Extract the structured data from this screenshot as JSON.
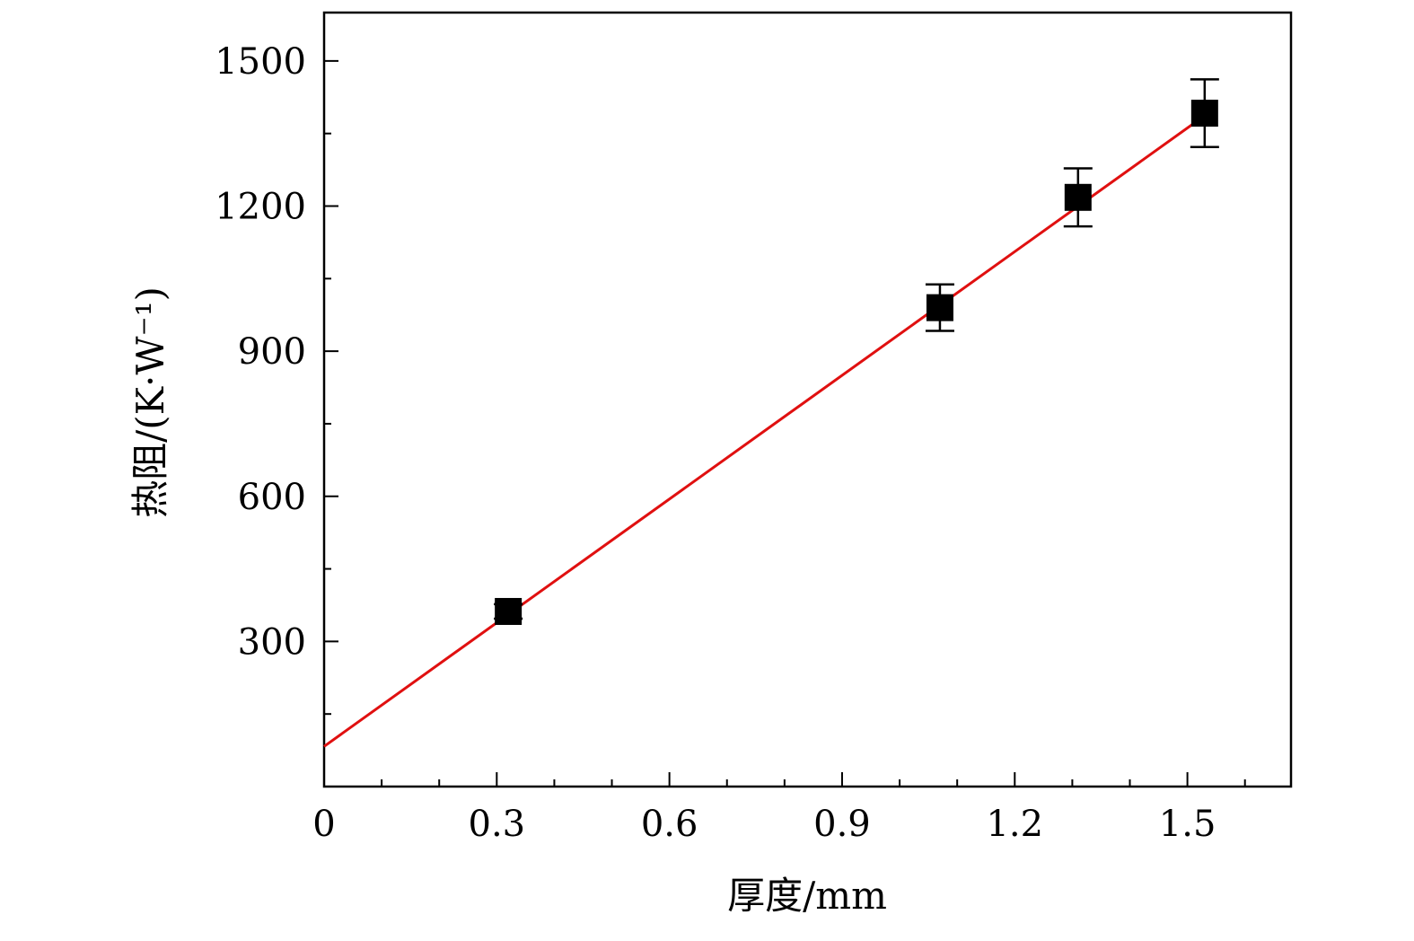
{
  "chart_data": {
    "type": "scatter",
    "title": "",
    "xlabel": "厚度/mm",
    "ylabel": "热阻/(K·W⁻¹)",
    "xlim": [
      0,
      1.68
    ],
    "ylim": [
      0,
      1600
    ],
    "x_ticks": [
      "0",
      "0.3",
      "0.6",
      "0.9",
      "1.2",
      "1.5"
    ],
    "y_ticks": [
      "300",
      "600",
      "900",
      "1200",
      "1500"
    ],
    "grid": false,
    "legend": "none",
    "series": [
      {
        "marker": "square",
        "color": "#000000",
        "x": [
          0.32,
          1.07,
          1.31,
          1.53
        ],
        "y": [
          362,
          990,
          1218,
          1392
        ],
        "y_error": [
          15,
          48,
          60,
          70
        ]
      }
    ],
    "fit_line": {
      "color": "#e01010",
      "x": [
        0.0,
        1.53
      ],
      "y": [
        83,
        1387
      ]
    }
  }
}
